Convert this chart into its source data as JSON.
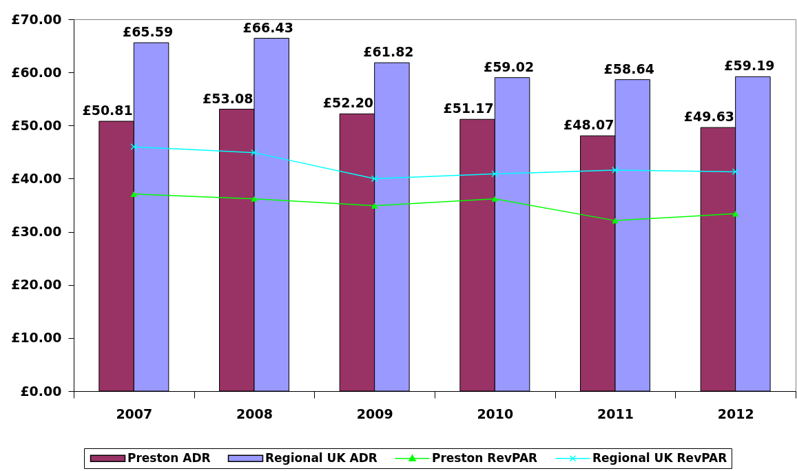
{
  "chart_data": {
    "type": "bar",
    "categories": [
      "2007",
      "2008",
      "2009",
      "2010",
      "2011",
      "2012"
    ],
    "series": [
      {
        "name": "Preston ADR",
        "color": "#993366",
        "values": [
          50.81,
          53.08,
          52.2,
          51.17,
          48.07,
          49.63
        ],
        "value_labels": [
          "£50.81",
          "£53.08",
          "£52.20",
          "£51.17",
          "£48.07",
          "£49.63"
        ]
      },
      {
        "name": "Regional UK ADR",
        "color": "#9999ff",
        "values": [
          65.59,
          66.43,
          61.82,
          59.02,
          58.64,
          59.19
        ],
        "value_labels": [
          "£65.59",
          "£66.43",
          "£61.82",
          "£59.02",
          "£58.64",
          "£59.19"
        ]
      },
      {
        "name": "Preston RevPAR",
        "type": "line",
        "color": "#00ff00",
        "marker": "triangle",
        "line_style": "solid",
        "values": [
          37.1,
          36.2,
          34.9,
          36.2,
          32.1,
          33.4
        ]
      },
      {
        "name": "Regional UK RevPAR",
        "type": "line",
        "color": "#00ffff",
        "marker": "cross",
        "line_style": "solid",
        "values": [
          46.0,
          44.9,
          40.0,
          40.9,
          41.6,
          41.3
        ]
      }
    ],
    "ylim": [
      0,
      70
    ],
    "yticks": [
      {
        "value": 0,
        "label": "£0.00"
      },
      {
        "value": 10,
        "label": "£10.00"
      },
      {
        "value": 20,
        "label": "£20.00"
      },
      {
        "value": 30,
        "label": "£30.00"
      },
      {
        "value": 40,
        "label": "£40.00"
      },
      {
        "value": 50,
        "label": "£50.00"
      },
      {
        "value": 60,
        "label": "£60.00"
      },
      {
        "value": 70,
        "label": "£70.00"
      }
    ],
    "legend": "bottom",
    "grid": false
  }
}
